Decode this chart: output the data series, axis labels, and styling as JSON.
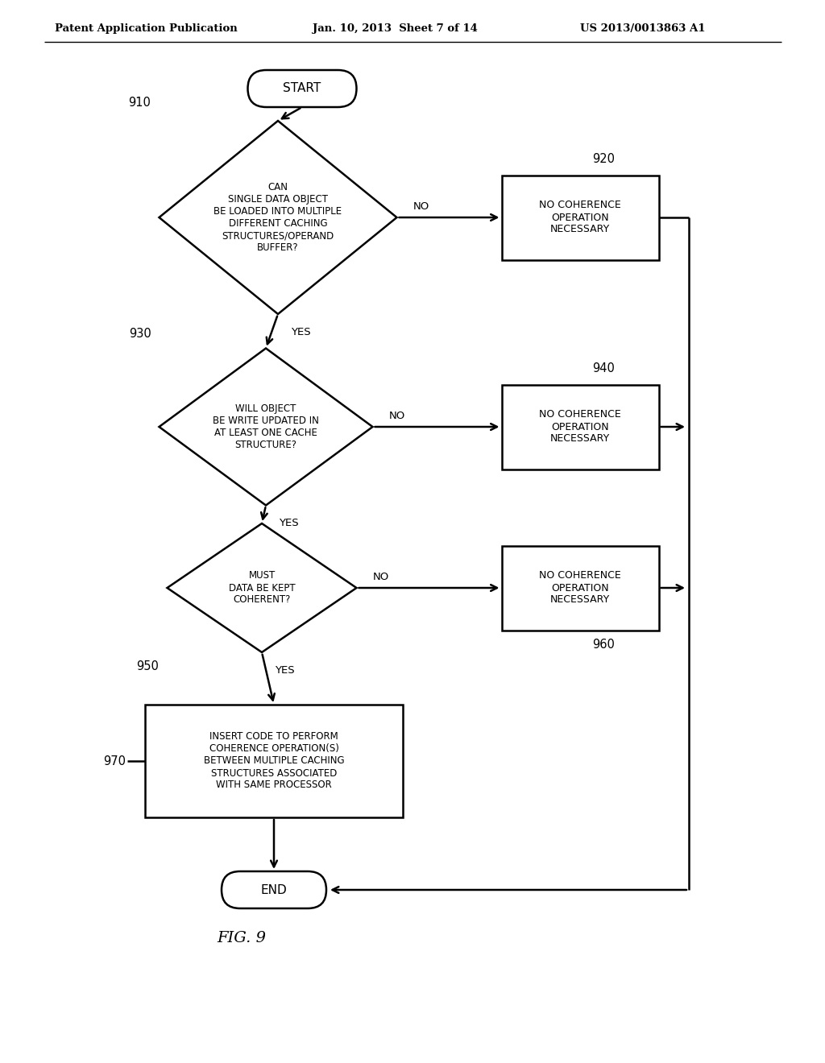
{
  "bg_color": "#ffffff",
  "header_left": "Patent Application Publication",
  "header_center": "Jan. 10, 2013  Sheet 7 of 14",
  "header_right": "US 2013/0013863 A1",
  "figure_label": "FIG. 9",
  "start_label": "START",
  "end_label": "END",
  "diamond1_label": "CAN\nSINGLE DATA OBJECT\nBE LOADED INTO MULTIPLE\nDIFFERENT CACHING\nSTRUCTURES/OPERAND\nBUFFER?",
  "diamond1_ref": "910",
  "diamond2_label": "WILL OBJECT\nBE WRITE UPDATED IN\nAT LEAST ONE CACHE\nSTRUCTURE?",
  "diamond2_ref": "930",
  "diamond3_label": "MUST\nDATA BE KEPT\nCOHERENT?",
  "diamond3_ref": "950",
  "box1_label": "NO COHERENCE\nOPERATION\nNECESSARY",
  "box1_ref": "920",
  "box2_label": "NO COHERENCE\nOPERATION\nNECESSARY",
  "box2_ref": "940",
  "box3_label": "NO COHERENCE\nOPERATION\nNECESSARY",
  "box3_ref": "960",
  "box4_label": "INSERT CODE TO PERFORM\nCOHERENCE OPERATION(S)\nBETWEEN MULTIPLE CACHING\nSTRUCTURES ASSOCIATED\nWITH SAME PROCESSOR",
  "box4_ref": "970",
  "line_color": "#000000",
  "text_color": "#000000",
  "line_width": 1.8
}
